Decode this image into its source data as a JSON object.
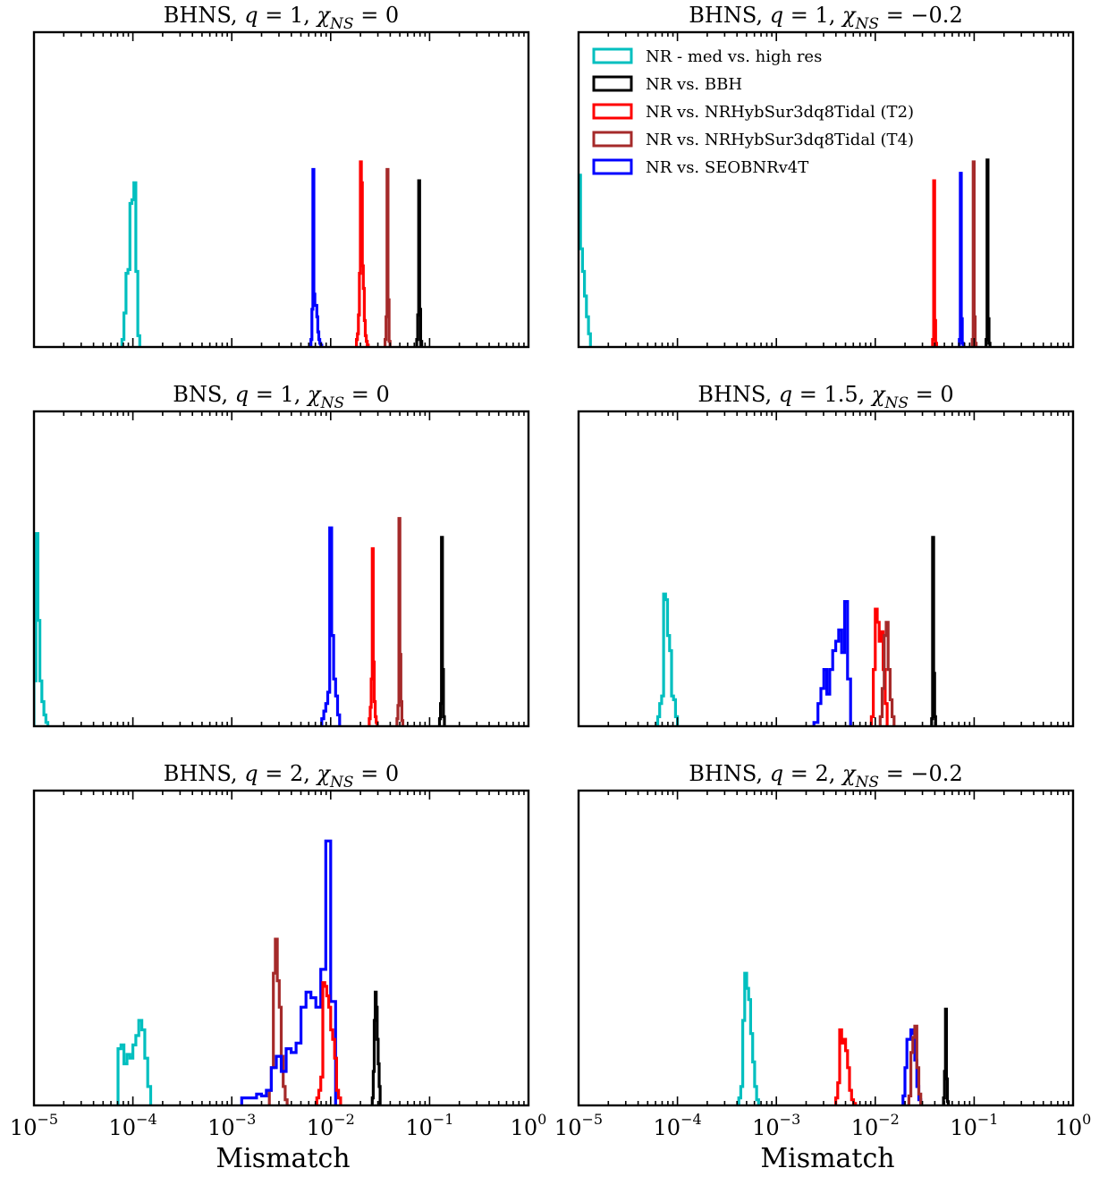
{
  "chart_data": [
    {
      "type": "histogram",
      "title": {
        "system": "BHNS",
        "q": "1",
        "chi": "0"
      },
      "xlabel": "",
      "xscale": "log",
      "xlim": [
        1e-05,
        1
      ],
      "yticks_visible": false,
      "legend": false,
      "series": [
        {
          "key": "cyan",
          "color": "#00BFBF",
          "log10_edges": [
            -4.11,
            -4.09,
            -4.07,
            -4.05,
            -4.03,
            -4.01,
            -3.99,
            -3.97,
            -3.95,
            -3.93
          ],
          "heights": [
            0.04,
            0.18,
            0.39,
            0.41,
            0.76,
            0.78,
            0.87,
            0.4,
            0.06
          ]
        },
        {
          "key": "blue",
          "color": "#0000FF",
          "log10_edges": [
            -2.2,
            -2.19,
            -2.18,
            -2.17,
            -2.16,
            -2.15,
            -2.14,
            -2.13,
            -2.12,
            -2.11,
            -2.1,
            -2.09
          ],
          "heights": [
            0.04,
            0.2,
            0.94,
            0.28,
            0.22,
            0.22,
            0.16,
            0.08,
            0.04,
            0.02,
            0.01
          ]
        },
        {
          "key": "red",
          "color": "#FF0000",
          "log10_edges": [
            -1.74,
            -1.73,
            -1.72,
            -1.71,
            -1.7,
            -1.69,
            -1.68,
            -1.67,
            -1.66,
            -1.65,
            -1.64,
            -1.63,
            -1.62
          ],
          "heights": [
            0.04,
            0.07,
            0.17,
            0.39,
            0.98,
            0.87,
            0.43,
            0.31,
            0.14,
            0.06,
            0.03,
            0.01
          ]
        },
        {
          "key": "brown",
          "color": "#A52A2A",
          "log10_edges": [
            -1.45,
            -1.44,
            -1.43,
            -1.42,
            -1.41,
            -1.4
          ],
          "heights": [
            0.04,
            0.16,
            0.94,
            0.25,
            0.03
          ]
        },
        {
          "key": "black",
          "color": "#000000",
          "log10_edges": [
            -1.13,
            -1.12,
            -1.11,
            -1.1,
            -1.09,
            -1.08
          ],
          "heights": [
            0.04,
            0.17,
            0.88,
            0.2,
            0.03
          ]
        }
      ]
    },
    {
      "type": "histogram",
      "title": {
        "system": "BHNS",
        "q": "1",
        "chi": "−0.2"
      },
      "xlabel": "",
      "xscale": "log",
      "xlim": [
        1e-05,
        1
      ],
      "yticks_visible": false,
      "legend": true,
      "series": [
        {
          "key": "cyan",
          "color": "#00BFBF",
          "log10_edges": [
            -5.02,
            -5.0,
            -4.98,
            -4.96,
            -4.94,
            -4.92,
            -4.9,
            -4.88
          ],
          "heights": [
            0.7,
            0.91,
            0.52,
            0.4,
            0.27,
            0.16,
            0.07
          ]
        },
        {
          "key": "red",
          "color": "#FF0000",
          "log10_edges": [
            -1.42,
            -1.41,
            -1.4,
            -1.39,
            -1.38
          ],
          "heights": [
            0.04,
            0.88,
            0.14,
            0.02
          ]
        },
        {
          "key": "blue",
          "color": "#0000FF",
          "log10_edges": [
            -1.15,
            -1.14,
            -1.13,
            -1.12,
            -1.11
          ],
          "heights": [
            0.04,
            0.92,
            0.15,
            0.02
          ]
        },
        {
          "key": "brown",
          "color": "#A52A2A",
          "log10_edges": [
            -1.02,
            -1.01,
            -1.0,
            -0.99,
            -0.98
          ],
          "heights": [
            0.04,
            0.98,
            0.16,
            0.02
          ]
        },
        {
          "key": "black",
          "color": "#000000",
          "log10_edges": [
            -0.88,
            -0.87,
            -0.86,
            -0.85,
            -0.84
          ],
          "heights": [
            0.04,
            0.99,
            0.15,
            0.02
          ]
        }
      ]
    },
    {
      "type": "histogram",
      "title": {
        "system": "BNS",
        "q": "1",
        "chi": "0"
      },
      "xlabel": "",
      "xscale": "log",
      "xlim": [
        1e-05,
        1
      ],
      "yticks_visible": false,
      "legend": false,
      "series": [
        {
          "key": "cyan",
          "color": "#00BFBF",
          "log10_edges": [
            -5.0,
            -4.98,
            -4.96,
            -4.94,
            -4.92,
            -4.9,
            -4.88,
            -4.86
          ],
          "heights": [
            0.24,
            1.02,
            0.56,
            0.24,
            0.13,
            0.06,
            0.02
          ]
        },
        {
          "key": "blue",
          "color": "#0000FF",
          "log10_edges": [
            -2.09,
            -2.07,
            -2.05,
            -2.03,
            -2.01,
            -1.99,
            -1.97,
            -1.95,
            -1.93,
            -1.91
          ],
          "heights": [
            0.04,
            0.08,
            0.12,
            0.18,
            1.05,
            0.48,
            0.25,
            0.16,
            0.06
          ]
        },
        {
          "key": "red",
          "color": "#FF0000",
          "log10_edges": [
            -1.61,
            -1.6,
            -1.59,
            -1.58,
            -1.57,
            -1.56,
            -1.55,
            -1.54,
            -1.53
          ],
          "heights": [
            0.04,
            0.1,
            0.25,
            0.94,
            0.34,
            0.13,
            0.05,
            0.02
          ]
        },
        {
          "key": "brown",
          "color": "#A52A2A",
          "log10_edges": [
            -1.33,
            -1.32,
            -1.31,
            -1.3,
            -1.29,
            -1.28,
            -1.27
          ],
          "heights": [
            0.04,
            0.11,
            1.1,
            0.38,
            0.13,
            0.03
          ]
        },
        {
          "key": "black",
          "color": "#000000",
          "log10_edges": [
            -0.9,
            -0.89,
            -0.88,
            -0.87,
            -0.86,
            -0.85
          ],
          "heights": [
            0.04,
            0.12,
            1.0,
            0.3,
            0.05
          ]
        }
      ]
    },
    {
      "type": "histogram",
      "title": {
        "system": "BHNS",
        "q": "1.5",
        "chi": "0"
      },
      "xlabel": "",
      "xscale": "log",
      "xlim": [
        1e-05,
        1
      ],
      "yticks_visible": false,
      "legend": false,
      "series": [
        {
          "key": "cyan",
          "color": "#00BFBF",
          "log10_edges": [
            -4.2,
            -4.18,
            -4.16,
            -4.14,
            -4.12,
            -4.1,
            -4.08,
            -4.06,
            -4.04,
            -4.02,
            -4.0
          ],
          "heights": [
            0.05,
            0.12,
            0.16,
            0.7,
            0.67,
            0.48,
            0.4,
            0.16,
            0.14,
            0.05
          ]
        },
        {
          "key": "blue",
          "color": "#0000FF",
          "log10_edges": [
            -2.62,
            -2.58,
            -2.55,
            -2.52,
            -2.49,
            -2.46,
            -2.43,
            -2.4,
            -2.37,
            -2.34,
            -2.31,
            -2.28,
            -2.25
          ],
          "heights": [
            0.02,
            0.12,
            0.2,
            0.3,
            0.17,
            0.3,
            0.4,
            0.45,
            0.51,
            0.39,
            0.66,
            0.25
          ]
        },
        {
          "key": "red",
          "color": "#FF0000",
          "log10_edges": [
            -2.04,
            -2.02,
            -2.0,
            -1.98,
            -1.96,
            -1.94,
            -1.92,
            -1.9,
            -1.88
          ],
          "heights": [
            0.05,
            0.3,
            0.62,
            0.55,
            0.45,
            0.5,
            0.3,
            0.12
          ]
        },
        {
          "key": "brown",
          "color": "#A52A2A",
          "log10_edges": [
            -1.95,
            -1.93,
            -1.91,
            -1.89,
            -1.87,
            -1.85,
            -1.83,
            -1.81
          ],
          "heights": [
            0.05,
            0.2,
            0.48,
            0.55,
            0.3,
            0.14,
            0.05
          ]
        },
        {
          "key": "black",
          "color": "#000000",
          "log10_edges": [
            -1.43,
            -1.42,
            -1.41,
            -1.4,
            -1.39
          ],
          "heights": [
            0.04,
            1.0,
            0.28,
            0.05
          ]
        }
      ]
    },
    {
      "type": "histogram",
      "title": {
        "system": "BHNS",
        "q": "2",
        "chi": "0"
      },
      "xlabel": "Mismatch",
      "xscale": "log",
      "xlim": [
        1e-05,
        1
      ],
      "yticks_visible": false,
      "legend": false,
      "series": [
        {
          "key": "cyan",
          "color": "#00BFBF",
          "log10_edges": [
            -4.15,
            -4.12,
            -4.09,
            -4.06,
            -4.03,
            -4.0,
            -3.97,
            -3.94,
            -3.91,
            -3.88,
            -3.85,
            -3.82
          ],
          "heights": [
            0.3,
            0.32,
            0.22,
            0.27,
            0.25,
            0.32,
            0.37,
            0.45,
            0.4,
            0.25,
            0.1
          ]
        },
        {
          "key": "brown",
          "color": "#A52A2A",
          "log10_edges": [
            -2.62,
            -2.6,
            -2.58,
            -2.56,
            -2.54,
            -2.52,
            -2.5,
            -2.48,
            -2.46,
            -2.44
          ],
          "heights": [
            0.08,
            0.2,
            0.7,
            0.88,
            0.66,
            0.52,
            0.26,
            0.1,
            0.03
          ]
        },
        {
          "key": "blue",
          "color": "#0000FF",
          "log10_edges": [
            -2.9,
            -2.75,
            -2.7,
            -2.65,
            -2.6,
            -2.55,
            -2.5,
            -2.45,
            -2.4,
            -2.35,
            -2.3,
            -2.25,
            -2.2,
            -2.15,
            -2.1,
            -2.05,
            -2.0,
            -1.95
          ],
          "heights": [
            0.04,
            0.06,
            0.05,
            0.08,
            0.2,
            0.26,
            0.18,
            0.3,
            0.28,
            0.33,
            0.52,
            0.6,
            0.57,
            0.52,
            0.72,
            1.4,
            0.55
          ]
        },
        {
          "key": "red",
          "color": "#FF0000",
          "log10_edges": [
            -2.14,
            -2.12,
            -2.1,
            -2.08,
            -2.06,
            -2.04,
            -2.02,
            -2.0,
            -1.98,
            -1.96,
            -1.94,
            -1.92,
            -1.9
          ],
          "heights": [
            0.04,
            0.08,
            0.15,
            0.65,
            0.63,
            0.58,
            0.52,
            0.4,
            0.35,
            0.25,
            0.08,
            0.04
          ]
        },
        {
          "key": "black",
          "color": "#000000",
          "log10_edges": [
            -1.58,
            -1.57,
            -1.56,
            -1.55,
            -1.54,
            -1.53,
            -1.52,
            -1.51,
            -1.5
          ],
          "heights": [
            0.04,
            0.18,
            0.45,
            0.6,
            0.52,
            0.35,
            0.22,
            0.1
          ]
        }
      ]
    },
    {
      "type": "histogram",
      "title": {
        "system": "BHNS",
        "q": "2",
        "chi": "−0.2"
      },
      "xlabel": "Mismatch",
      "xscale": "log",
      "xlim": [
        1e-05,
        1
      ],
      "yticks_visible": false,
      "legend": false,
      "series": [
        {
          "key": "cyan",
          "color": "#00BFBF",
          "log10_edges": [
            -3.38,
            -3.36,
            -3.34,
            -3.32,
            -3.3,
            -3.28,
            -3.26,
            -3.24,
            -3.22,
            -3.2,
            -3.18
          ],
          "heights": [
            0.04,
            0.1,
            0.45,
            0.7,
            0.62,
            0.56,
            0.38,
            0.23,
            0.1,
            0.03
          ]
        },
        {
          "key": "red",
          "color": "#FF0000",
          "log10_edges": [
            -2.4,
            -2.38,
            -2.36,
            -2.34,
            -2.32,
            -2.3,
            -2.28,
            -2.26,
            -2.24,
            -2.22,
            -2.2
          ],
          "heights": [
            0.04,
            0.12,
            0.4,
            0.33,
            0.35,
            0.29,
            0.2,
            0.08,
            0.03,
            0.01
          ]
        },
        {
          "key": "blue",
          "color": "#0000FF",
          "log10_edges": [
            -1.72,
            -1.7,
            -1.68,
            -1.66,
            -1.64,
            -1.62,
            -1.6,
            -1.58,
            -1.56,
            -1.54
          ],
          "heights": [
            0.05,
            0.2,
            0.35,
            0.35,
            0.4,
            0.38,
            0.24,
            0.1,
            0.03
          ]
        },
        {
          "key": "brown",
          "color": "#A52A2A",
          "log10_edges": [
            -1.66,
            -1.64,
            -1.62,
            -1.6,
            -1.58,
            -1.56,
            -1.54
          ],
          "heights": [
            0.05,
            0.28,
            0.36,
            0.42,
            0.2,
            0.06
          ]
        },
        {
          "key": "black",
          "color": "#000000",
          "log10_edges": [
            -1.31,
            -1.3,
            -1.29,
            -1.28,
            -1.27,
            -1.26
          ],
          "heights": [
            0.04,
            0.18,
            0.51,
            0.14,
            0.02
          ]
        }
      ]
    }
  ],
  "legend_entries": [
    {
      "key": "cyan",
      "label": "NR - med vs. high res",
      "color": "#00BFBF"
    },
    {
      "key": "black",
      "label": "NR vs. BBH",
      "color": "#000000"
    },
    {
      "key": "red",
      "label": "NR vs. NRHybSur3dq8Tidal (T2)",
      "color": "#FF0000"
    },
    {
      "key": "brown",
      "label": "NR vs. NRHybSur3dq8Tidal (T4)",
      "color": "#A52A2A"
    },
    {
      "key": "blue",
      "label": "NR vs. SEOBNRv4T",
      "color": "#0000FF"
    }
  ],
  "x_tick_labels": [
    {
      "base": "10",
      "exp": "−5"
    },
    {
      "base": "10",
      "exp": "−4"
    },
    {
      "base": "10",
      "exp": "−3"
    },
    {
      "base": "10",
      "exp": "−2"
    },
    {
      "base": "10",
      "exp": "−1"
    },
    {
      "base": "10",
      "exp": "0"
    }
  ],
  "title_symbols": {
    "q": "q",
    "chi": "χ",
    "sub": "NS"
  }
}
